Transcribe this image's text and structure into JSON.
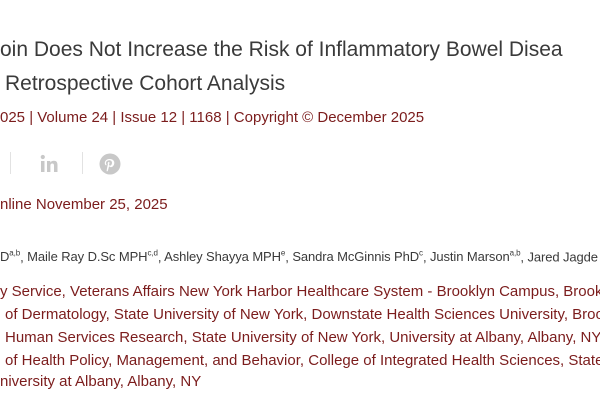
{
  "article": {
    "title_lines": [
      "oin Does Not Increase the Risk of Inflammatory Bowel Disea",
      "Retrospective Cohort Analysis"
    ],
    "citation": "025 | Volume 24 | Issue 12 | 1168 | Copyright © December 2025",
    "published": "nline November 25, 2025",
    "author_separator": ",",
    "authors": [
      {
        "name": "D",
        "sup": "a,b"
      },
      {
        "name": "Maile Ray D.Sc MPH",
        "sup": "c,d"
      },
      {
        "name": "Ashley Shayya MPH",
        "sup": "e"
      },
      {
        "name": "Sandra McGinnis PhD",
        "sup": "c"
      },
      {
        "name": "Justin Marson",
        "sup": "a,b"
      },
      {
        "name": "Jared Jagde",
        "sup": ""
      }
    ],
    "affiliations": [
      "y Service, Veterans Affairs New York Harbor Healthcare System - Brooklyn Campus, Brook",
      "of Dermatology, State University of New York, Downstate Health Sciences University, Broo",
      "Human Services Research, State University of New York, University at Albany, Albany, NY",
      "of Health Policy, Management, and Behavior, College of Integrated Health Sciences, State",
      "niversity at Albany, Albany, NY"
    ]
  }
}
